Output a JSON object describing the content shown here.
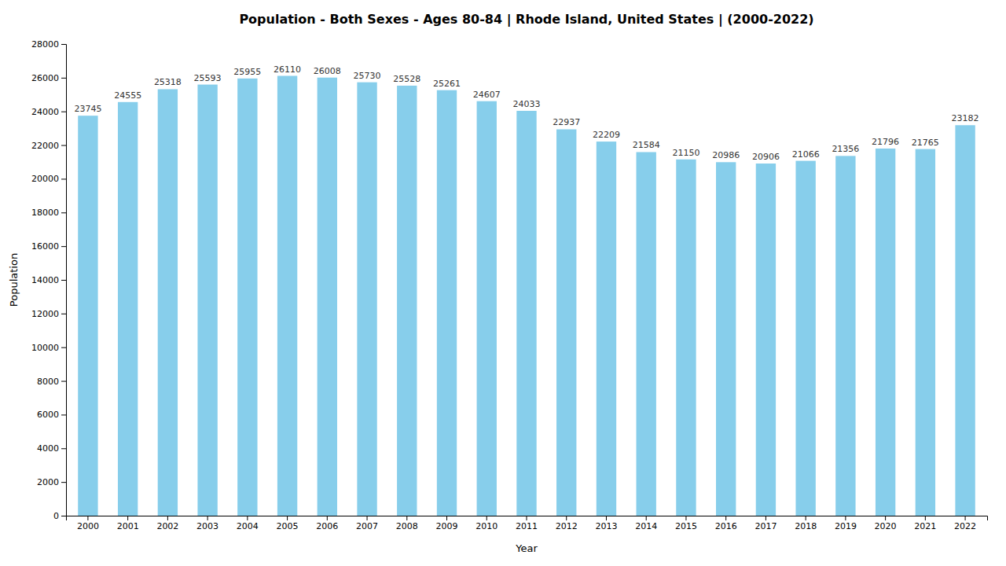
{
  "chart_data": {
    "type": "bar",
    "title": "Population - Both Sexes - Ages 80-84 | Rhode Island, United States |  (2000-2022)",
    "x_label": "Year",
    "y_label": "Population",
    "categories": [
      "2000",
      "2001",
      "2002",
      "2003",
      "2004",
      "2005",
      "2006",
      "2007",
      "2008",
      "2009",
      "2010",
      "2011",
      "2012",
      "2013",
      "2014",
      "2015",
      "2016",
      "2017",
      "2018",
      "2019",
      "2020",
      "2021",
      "2022"
    ],
    "values": [
      23745,
      24555,
      25318,
      25593,
      25955,
      26110,
      26008,
      25730,
      25528,
      25261,
      24607,
      24033,
      22937,
      22209,
      21584,
      21150,
      20986,
      20906,
      21066,
      21356,
      21796,
      21765,
      23182
    ],
    "color": "#87CEEB",
    "ylim": [
      0,
      28000
    ],
    "yticks": [
      0,
      2000,
      4000,
      6000,
      8000,
      10000,
      12000,
      14000,
      16000,
      18000,
      20000,
      22000,
      24000,
      26000,
      28000
    ],
    "grid": false,
    "data_labels": true
  }
}
